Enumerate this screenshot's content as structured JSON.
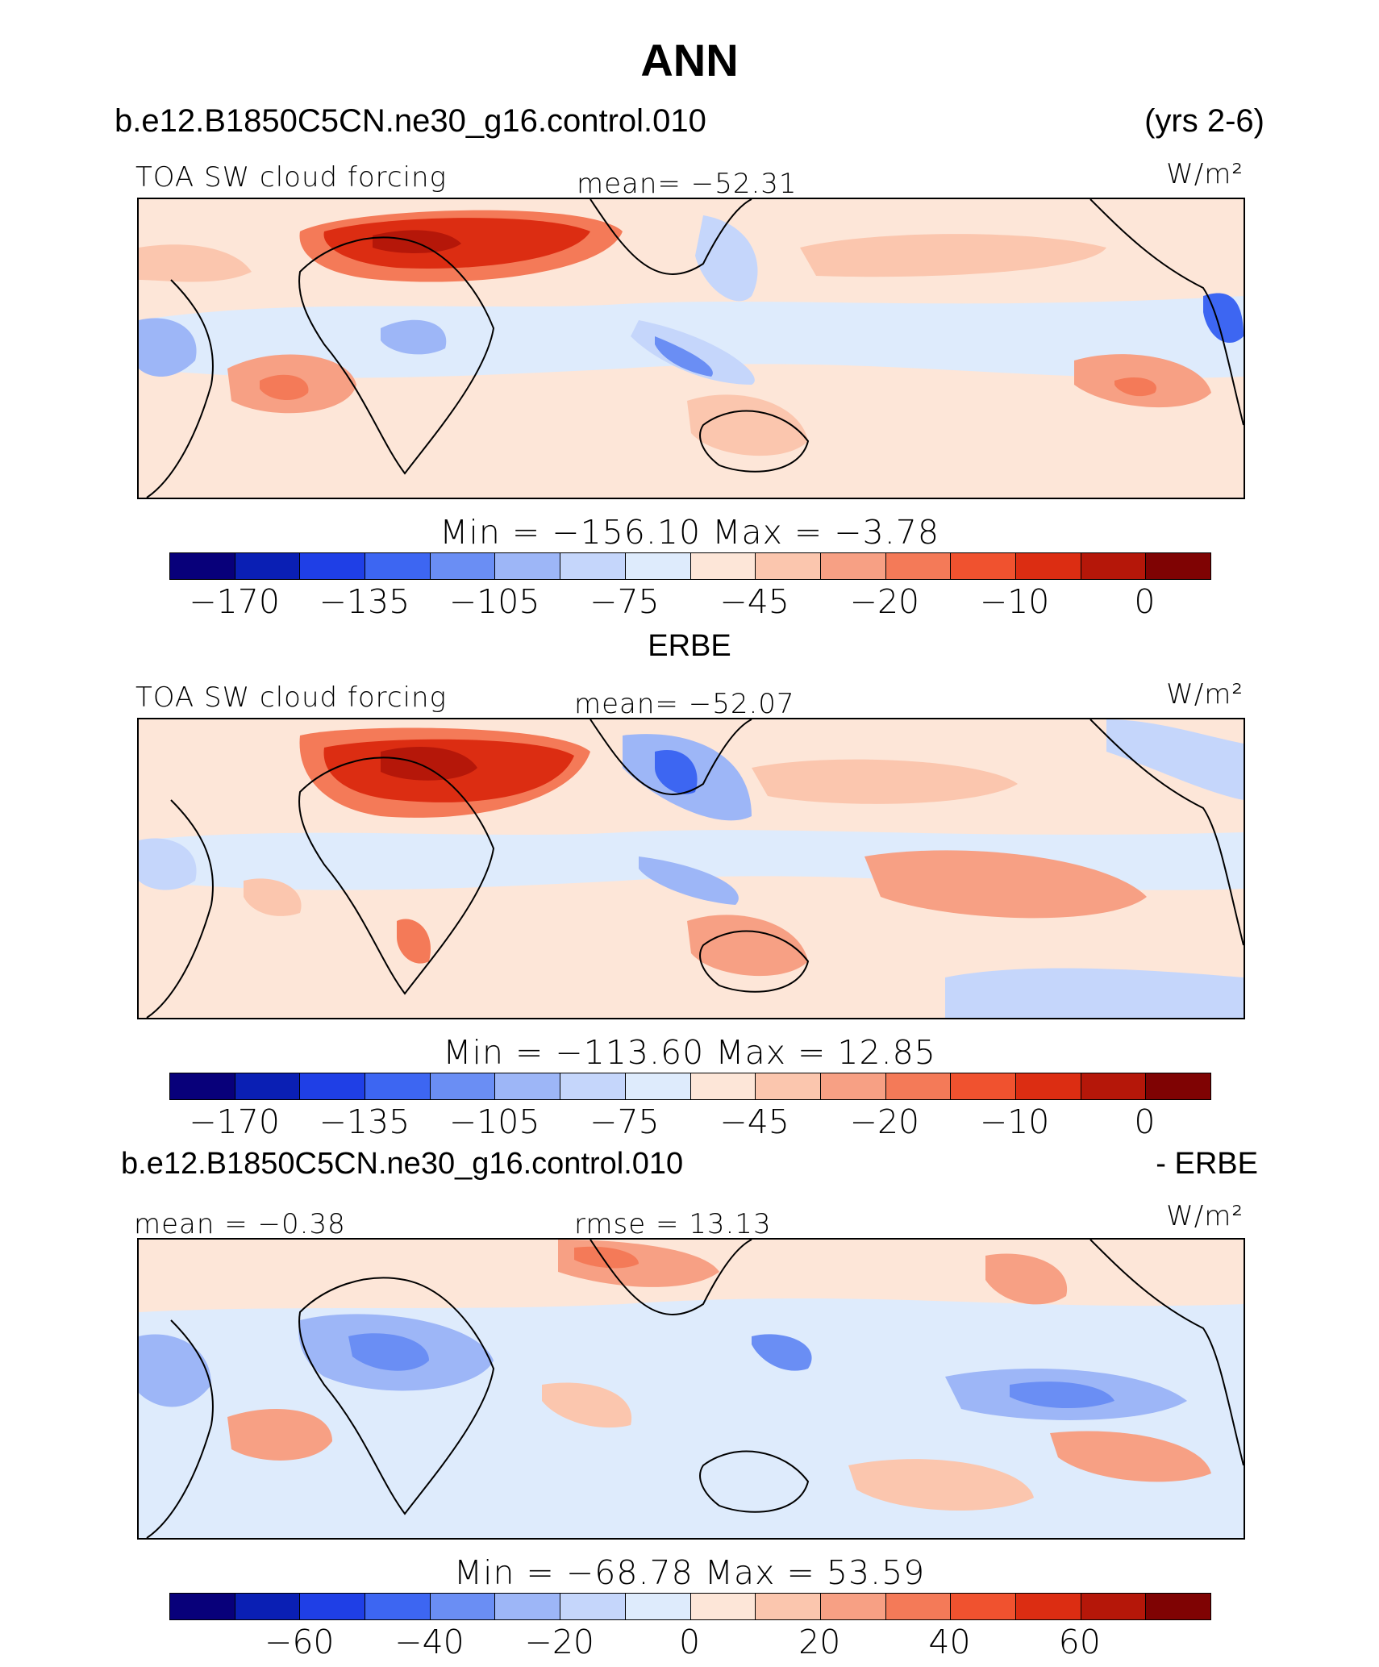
{
  "title": "ANN",
  "case_name": "b.e12.B1850C5CN.ne30_g16.control.010",
  "years": "(yrs 2-6)",
  "palette": [
    "#08007a",
    "#0a1fb4",
    "#1f3fe6",
    "#3d66f2",
    "#6a8ef4",
    "#9db6f7",
    "#c5d6fb",
    "#deebfc",
    "#fde6d8",
    "#fbc6ae",
    "#f7a084",
    "#f47a58",
    "#f0522f",
    "#dc2d12",
    "#b51709",
    "#7f0303"
  ],
  "panels": [
    {
      "header_left": "TOA SW cloud forcing",
      "header_mid": "mean= −52.31",
      "units": "W/m²",
      "minmax": "Min  =  −156.10  Max  =   −3.78",
      "ticks": [
        "−170",
        "−135",
        "−105",
        "−75",
        "−45",
        "−20",
        "−10",
        "0"
      ]
    },
    {
      "subtitle": "ERBE",
      "header_left": "TOA SW cloud forcing",
      "header_mid": "mean= −52.07",
      "units": "W/m²",
      "minmax": "Min  =  −113.60  Max  =   12.85",
      "ticks": [
        "−170",
        "−135",
        "−105",
        "−75",
        "−45",
        "−20",
        "−10",
        "0"
      ]
    },
    {
      "subtitle_left": "b.e12.B1850C5CN.ne30_g16.control.010",
      "subtitle_right": "- ERBE",
      "header_left": "mean =   −0.38",
      "header_mid": "rmse =   13.13",
      "units": "W/m²",
      "minmax": "Min  =  −68.78  Max  =   53.59",
      "ticks": [
        "−60",
        "−40",
        "−20",
        "0",
        "20",
        "40",
        "60"
      ]
    }
  ]
}
